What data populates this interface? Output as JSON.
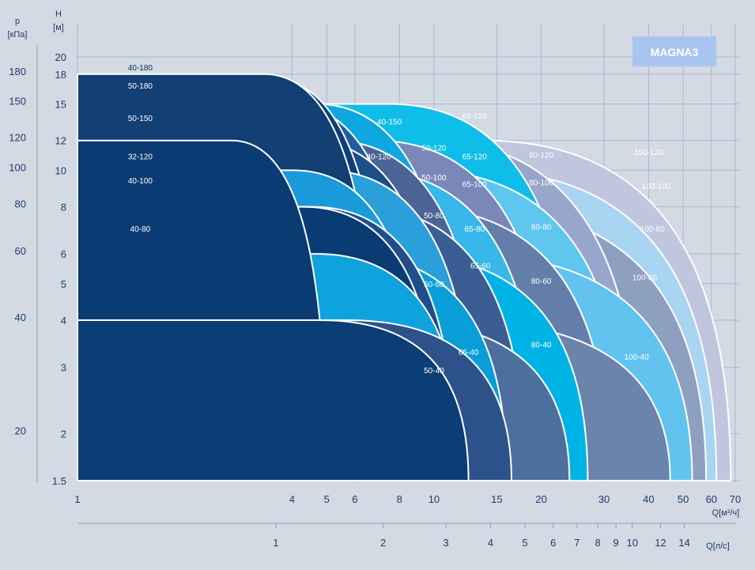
{
  "chart_data": {
    "type": "area",
    "brand_label": "MAGNA3",
    "axes": {
      "p_title_line1": "p",
      "p_title_line2": "[кПа]",
      "h_title_line1": "H",
      "h_title_line2": "[м]",
      "q_m3h_title": "Q[м³/ч]",
      "q_ls_title": "Q[л/с]",
      "h_range": [
        1.5,
        20
      ],
      "q_range": [
        1,
        70
      ],
      "scale": "log-log"
    },
    "h_ticks": [
      "1.5",
      "2",
      "3",
      "4",
      "5",
      "6",
      "8",
      "10",
      "12",
      "15",
      "18",
      "20"
    ],
    "p_ticks": [
      "20",
      "40",
      "60",
      "80",
      "100",
      "120",
      "150",
      "180"
    ],
    "q_m3h_ticks": [
      "1",
      "4",
      "5",
      "6",
      "8",
      "10",
      "15",
      "20",
      "30",
      "40",
      "50",
      "60",
      "70"
    ],
    "q_ls_ticks": [
      "1",
      "2",
      "3",
      "4",
      "5",
      "6",
      "7",
      "8",
      "9",
      "10",
      "12",
      "14"
    ],
    "series": [
      {
        "name": "100-120",
        "color": "#bfc6dd",
        "h_max": 12,
        "q_max": 68,
        "label_q": 40,
        "label_h": 11.2
      },
      {
        "name": "100-100",
        "color": "#a9d4f2",
        "h_max": 10,
        "q_max": 62,
        "label_q": 42,
        "label_h": 9.1
      },
      {
        "name": "100-80",
        "color": "#8ea0c0",
        "h_max": 8,
        "q_max": 58,
        "label_q": 41,
        "label_h": 7.0
      },
      {
        "name": "100-60",
        "color": "#62c3ef",
        "h_max": 6,
        "q_max": 53,
        "label_q": 39,
        "label_h": 5.2
      },
      {
        "name": "100-40",
        "color": "#6a84ac",
        "h_max": 4,
        "q_max": 46,
        "label_q": 37,
        "label_h": 3.2
      },
      {
        "name": "80-120",
        "color": "#98a6cc",
        "h_max": 12,
        "q_max": 38,
        "label_q": 20,
        "label_h": 11.0
      },
      {
        "name": "80-100",
        "color": "#5ec6ef",
        "h_max": 10,
        "q_max": 35,
        "label_q": 20,
        "label_h": 9.3
      },
      {
        "name": "80-80",
        "color": "#637ea8",
        "h_max": 8,
        "q_max": 31,
        "label_q": 20,
        "label_h": 7.1
      },
      {
        "name": "80-60",
        "color": "#00b3e6",
        "h_max": 6,
        "q_max": 27,
        "label_q": 20,
        "label_h": 5.1
      },
      {
        "name": "80-40",
        "color": "#4c6f9e",
        "h_max": 4,
        "q_max": 24,
        "label_q": 20,
        "label_h": 3.45
      },
      {
        "name": "65-150",
        "color": "#0fbde9",
        "h_max": 15,
        "q_max": 26,
        "label_q": 13,
        "label_h": 14.0
      },
      {
        "name": "65-120",
        "color": "#7a87b8",
        "h_max": 12,
        "q_max": 22,
        "label_q": 13,
        "label_h": 10.9
      },
      {
        "name": "65-100",
        "color": "#38b8ea",
        "h_max": 10,
        "q_max": 20,
        "label_q": 13,
        "label_h": 9.2
      },
      {
        "name": "65-80",
        "color": "#3a5e94",
        "h_max": 8,
        "q_max": 18,
        "label_q": 13,
        "label_h": 7.0
      },
      {
        "name": "65-60",
        "color": "#0a9ed8",
        "h_max": 6,
        "q_max": 16,
        "label_q": 13.5,
        "label_h": 5.6
      },
      {
        "name": "65-40",
        "color": "#2c5289",
        "h_max": 4,
        "q_max": 16.5,
        "label_q": 12.5,
        "label_h": 3.3
      },
      {
        "name": "50-180",
        "color": "#0d3f78",
        "h_max": 17.5,
        "q_max": 7.5,
        "label_q": 1.5,
        "label_h": 16.8
      },
      {
        "name": "50-150",
        "color": "#0fa7df",
        "h_max": 15,
        "q_max": 12,
        "label_q": 1.5,
        "label_h": 13.8
      },
      {
        "name": "50-120",
        "color": "#4b6495",
        "h_max": 12,
        "q_max": 14,
        "label_q": 10,
        "label_h": 11.5
      },
      {
        "name": "50-100",
        "color": "#2a9fd9",
        "h_max": 10,
        "q_max": 13,
        "label_q": 10,
        "label_h": 9.6
      },
      {
        "name": "50-80",
        "color": "#1f4e88",
        "h_max": 8,
        "q_max": 11.5,
        "label_q": 10,
        "label_h": 7.6
      },
      {
        "name": "50-60",
        "color": "#0ea3dc",
        "h_max": 6,
        "q_max": 12,
        "label_q": 10,
        "label_h": 5.0
      },
      {
        "name": "50-40",
        "color": "#0a3e74",
        "h_max": 4,
        "q_max": 12.5,
        "label_q": 10,
        "label_h": 2.95
      },
      {
        "name": "40-180",
        "color": "#123f74",
        "h_max": 18,
        "q_max": 7,
        "label_q": 1.5,
        "label_h": 18.8
      },
      {
        "name": "40-150",
        "color": "#1e5ea0",
        "h_max": 15,
        "q_max": 9,
        "label_q": 7.5,
        "label_h": 13.5
      },
      {
        "name": "40-120",
        "color": "#1e4e88",
        "h_max": 12,
        "q_max": 11,
        "label_q": 7,
        "label_h": 10.9
      },
      {
        "name": "40-100",
        "color": "#1a9ad8",
        "h_max": 10,
        "q_max": 9.5,
        "label_q": 1.5,
        "label_h": 9.4
      },
      {
        "name": "40-80",
        "color": "#0a3c73",
        "h_max": 8,
        "q_max": 10.5,
        "label_q": 1.5,
        "label_h": 7.0
      },
      {
        "name": "32-120",
        "color": "#0a3c73",
        "h_max": 12,
        "q_max": 5,
        "label_q": 1.5,
        "label_h": 10.9
      }
    ]
  }
}
